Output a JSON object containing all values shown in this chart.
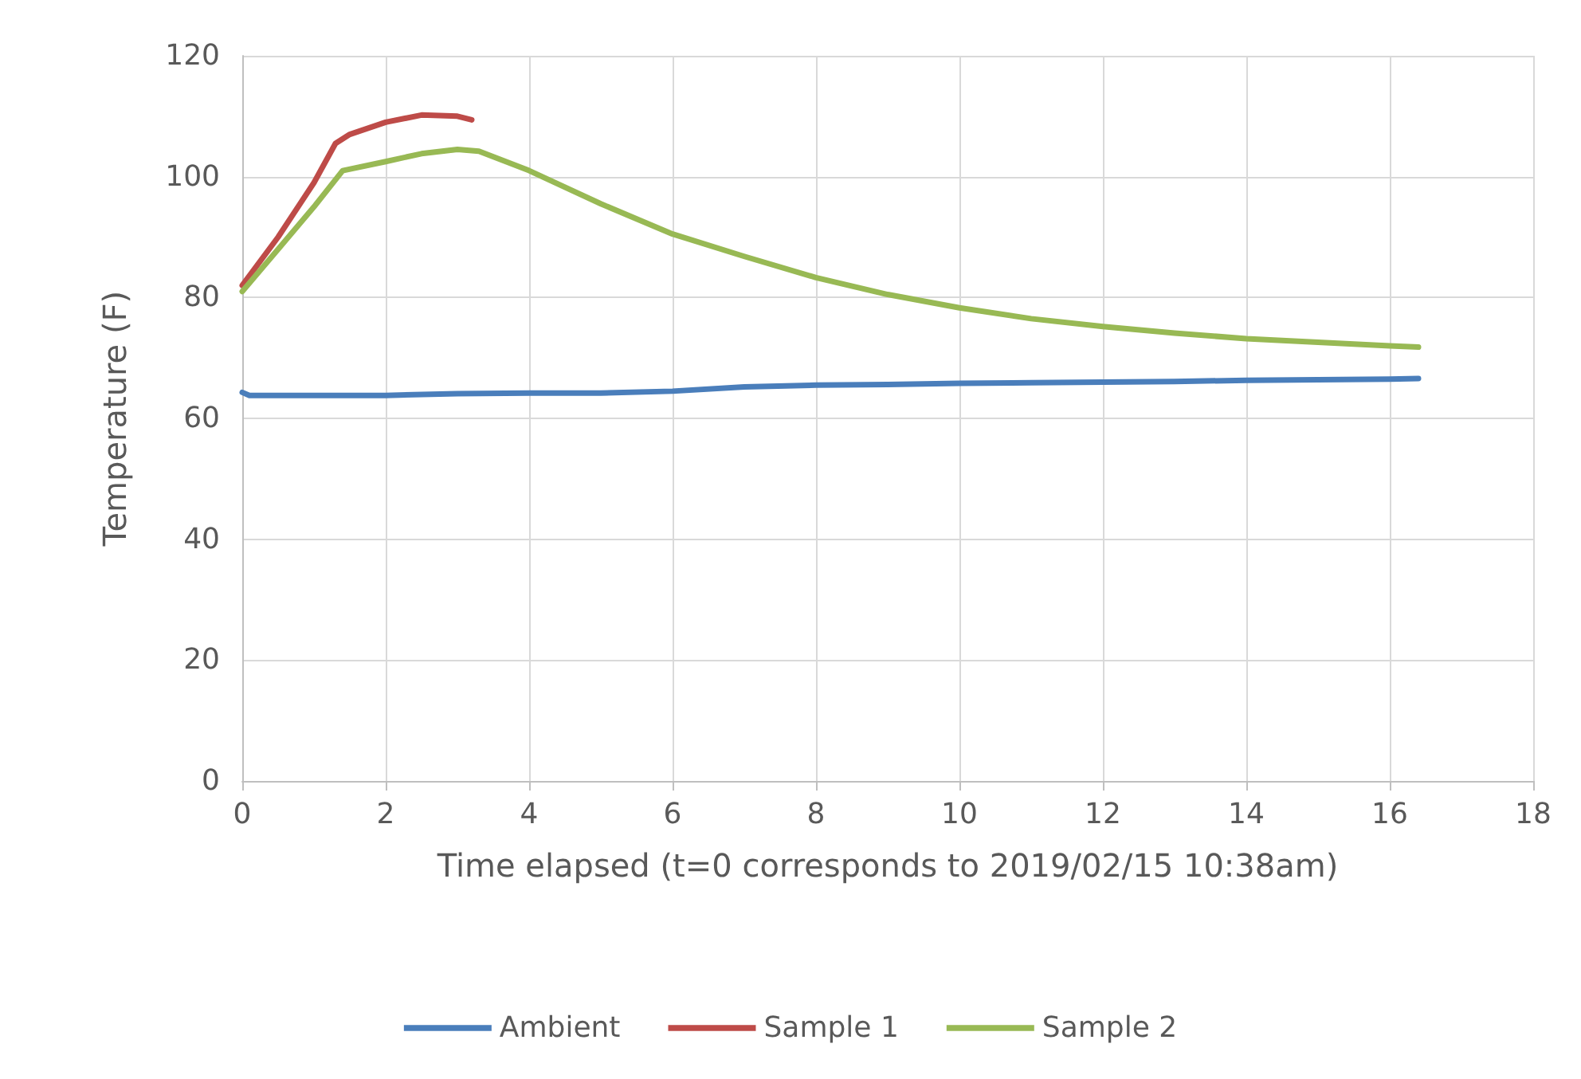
{
  "chart_data": {
    "type": "line",
    "xlabel": "Time elapsed (t=0 corresponds to 2019/02/15 10:38am)",
    "ylabel": "Temperature (F)",
    "xlim": [
      0,
      18
    ],
    "xticks": [
      0,
      2,
      4,
      6,
      8,
      10,
      12,
      14,
      16,
      18
    ],
    "ylim": [
      0,
      120
    ],
    "yticks": [
      0,
      20,
      40,
      60,
      80,
      100,
      120
    ],
    "grid": true,
    "legend": "bottom",
    "marker": "none",
    "line_style": "solid",
    "series": [
      {
        "name": "Ambient",
        "color": "#4a7ebb",
        "x": [
          0,
          0.1,
          1,
          2,
          3,
          4,
          5,
          6,
          7,
          8,
          9,
          10,
          11,
          12,
          13,
          14,
          15,
          16,
          16.4
        ],
        "values": [
          64.3,
          63.8,
          63.8,
          63.8,
          64.1,
          64.2,
          64.2,
          64.5,
          65.2,
          65.5,
          65.6,
          65.8,
          65.9,
          66,
          66.1,
          66.3,
          66.4,
          66.5,
          66.6
        ]
      },
      {
        "name": "Sample 1",
        "color": "#be4b48",
        "x": [
          0,
          0.5,
          1,
          1.3,
          1.5,
          2,
          2.5,
          3,
          3.2
        ],
        "values": [
          82,
          90,
          99,
          105.5,
          107,
          109,
          110.2,
          110,
          109.4
        ]
      },
      {
        "name": "Sample 2",
        "color": "#98b954",
        "x": [
          0,
          0.5,
          1,
          1.4,
          2,
          2.5,
          3,
          3.3,
          4,
          5,
          6,
          7,
          8,
          9,
          10,
          11,
          12,
          13,
          14,
          15,
          16,
          16.4
        ],
        "values": [
          81,
          88,
          95,
          101,
          102.5,
          103.8,
          104.5,
          104.2,
          101,
          95.5,
          90.5,
          86.8,
          83.3,
          80.5,
          78.3,
          76.5,
          75.2,
          74.1,
          73.2,
          72.6,
          72,
          71.8
        ]
      }
    ]
  }
}
